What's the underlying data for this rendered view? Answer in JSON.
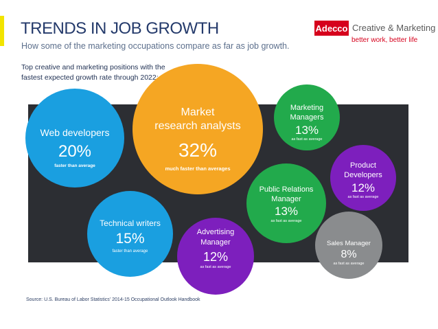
{
  "header": {
    "title": "TRENDS IN JOB GROWTH",
    "subtitle": "How some of the marketing occupations compare as far as job growth."
  },
  "brand": {
    "logo_text": "Adecco",
    "name": "Creative & Marketing",
    "tagline": "better work, better life"
  },
  "intro_text": "Top creative and marketing positions with the fastest expected growth rate through 2022:",
  "colors": {
    "web_developers": "#1a9fe0",
    "market_research": "#f5a623",
    "marketing_managers": "#22aa4c",
    "product_developers": "#7d1fbd",
    "public_relations": "#22aa4c",
    "technical_writers": "#1a9fe0",
    "advertising": "#7d1fbd",
    "sales_manager": "#8a8c8e",
    "dark_panel": "#2c2e33",
    "title": "#243a6b",
    "brand_red": "#d6001c"
  },
  "bubbles": {
    "web_developers": {
      "title": "Web developers",
      "percent": "20%",
      "note": "faster than average"
    },
    "market_research": {
      "title_line1": "Market",
      "title_line2": "research analysts",
      "percent": "32%",
      "note": "much faster than averages"
    },
    "marketing_managers": {
      "title_line1": "Marketing",
      "title_line2": "Managers",
      "percent": "13%",
      "note": "as fast as average"
    },
    "product_developers": {
      "title_line1": "Product",
      "title_line2": "Developers",
      "percent": "12%",
      "note": "as fast as average"
    },
    "public_relations": {
      "title_line1": "Public Relations",
      "title_line2": "Manager",
      "percent": "13%",
      "note": "as fast as average"
    },
    "technical_writers": {
      "title": "Technical writers",
      "percent": "15%",
      "note": "faster than average"
    },
    "advertising": {
      "title_line1": "Advertising",
      "title_line2": "Manager",
      "percent": "12%",
      "note": "as fast as average"
    },
    "sales_manager": {
      "title": "Sales Manager",
      "percent": "8%",
      "note": "as fast as average"
    }
  },
  "source": "Source: U.S. Bureau of Labor Statistics' 2014-15 Occupational Outlook Handbook"
}
